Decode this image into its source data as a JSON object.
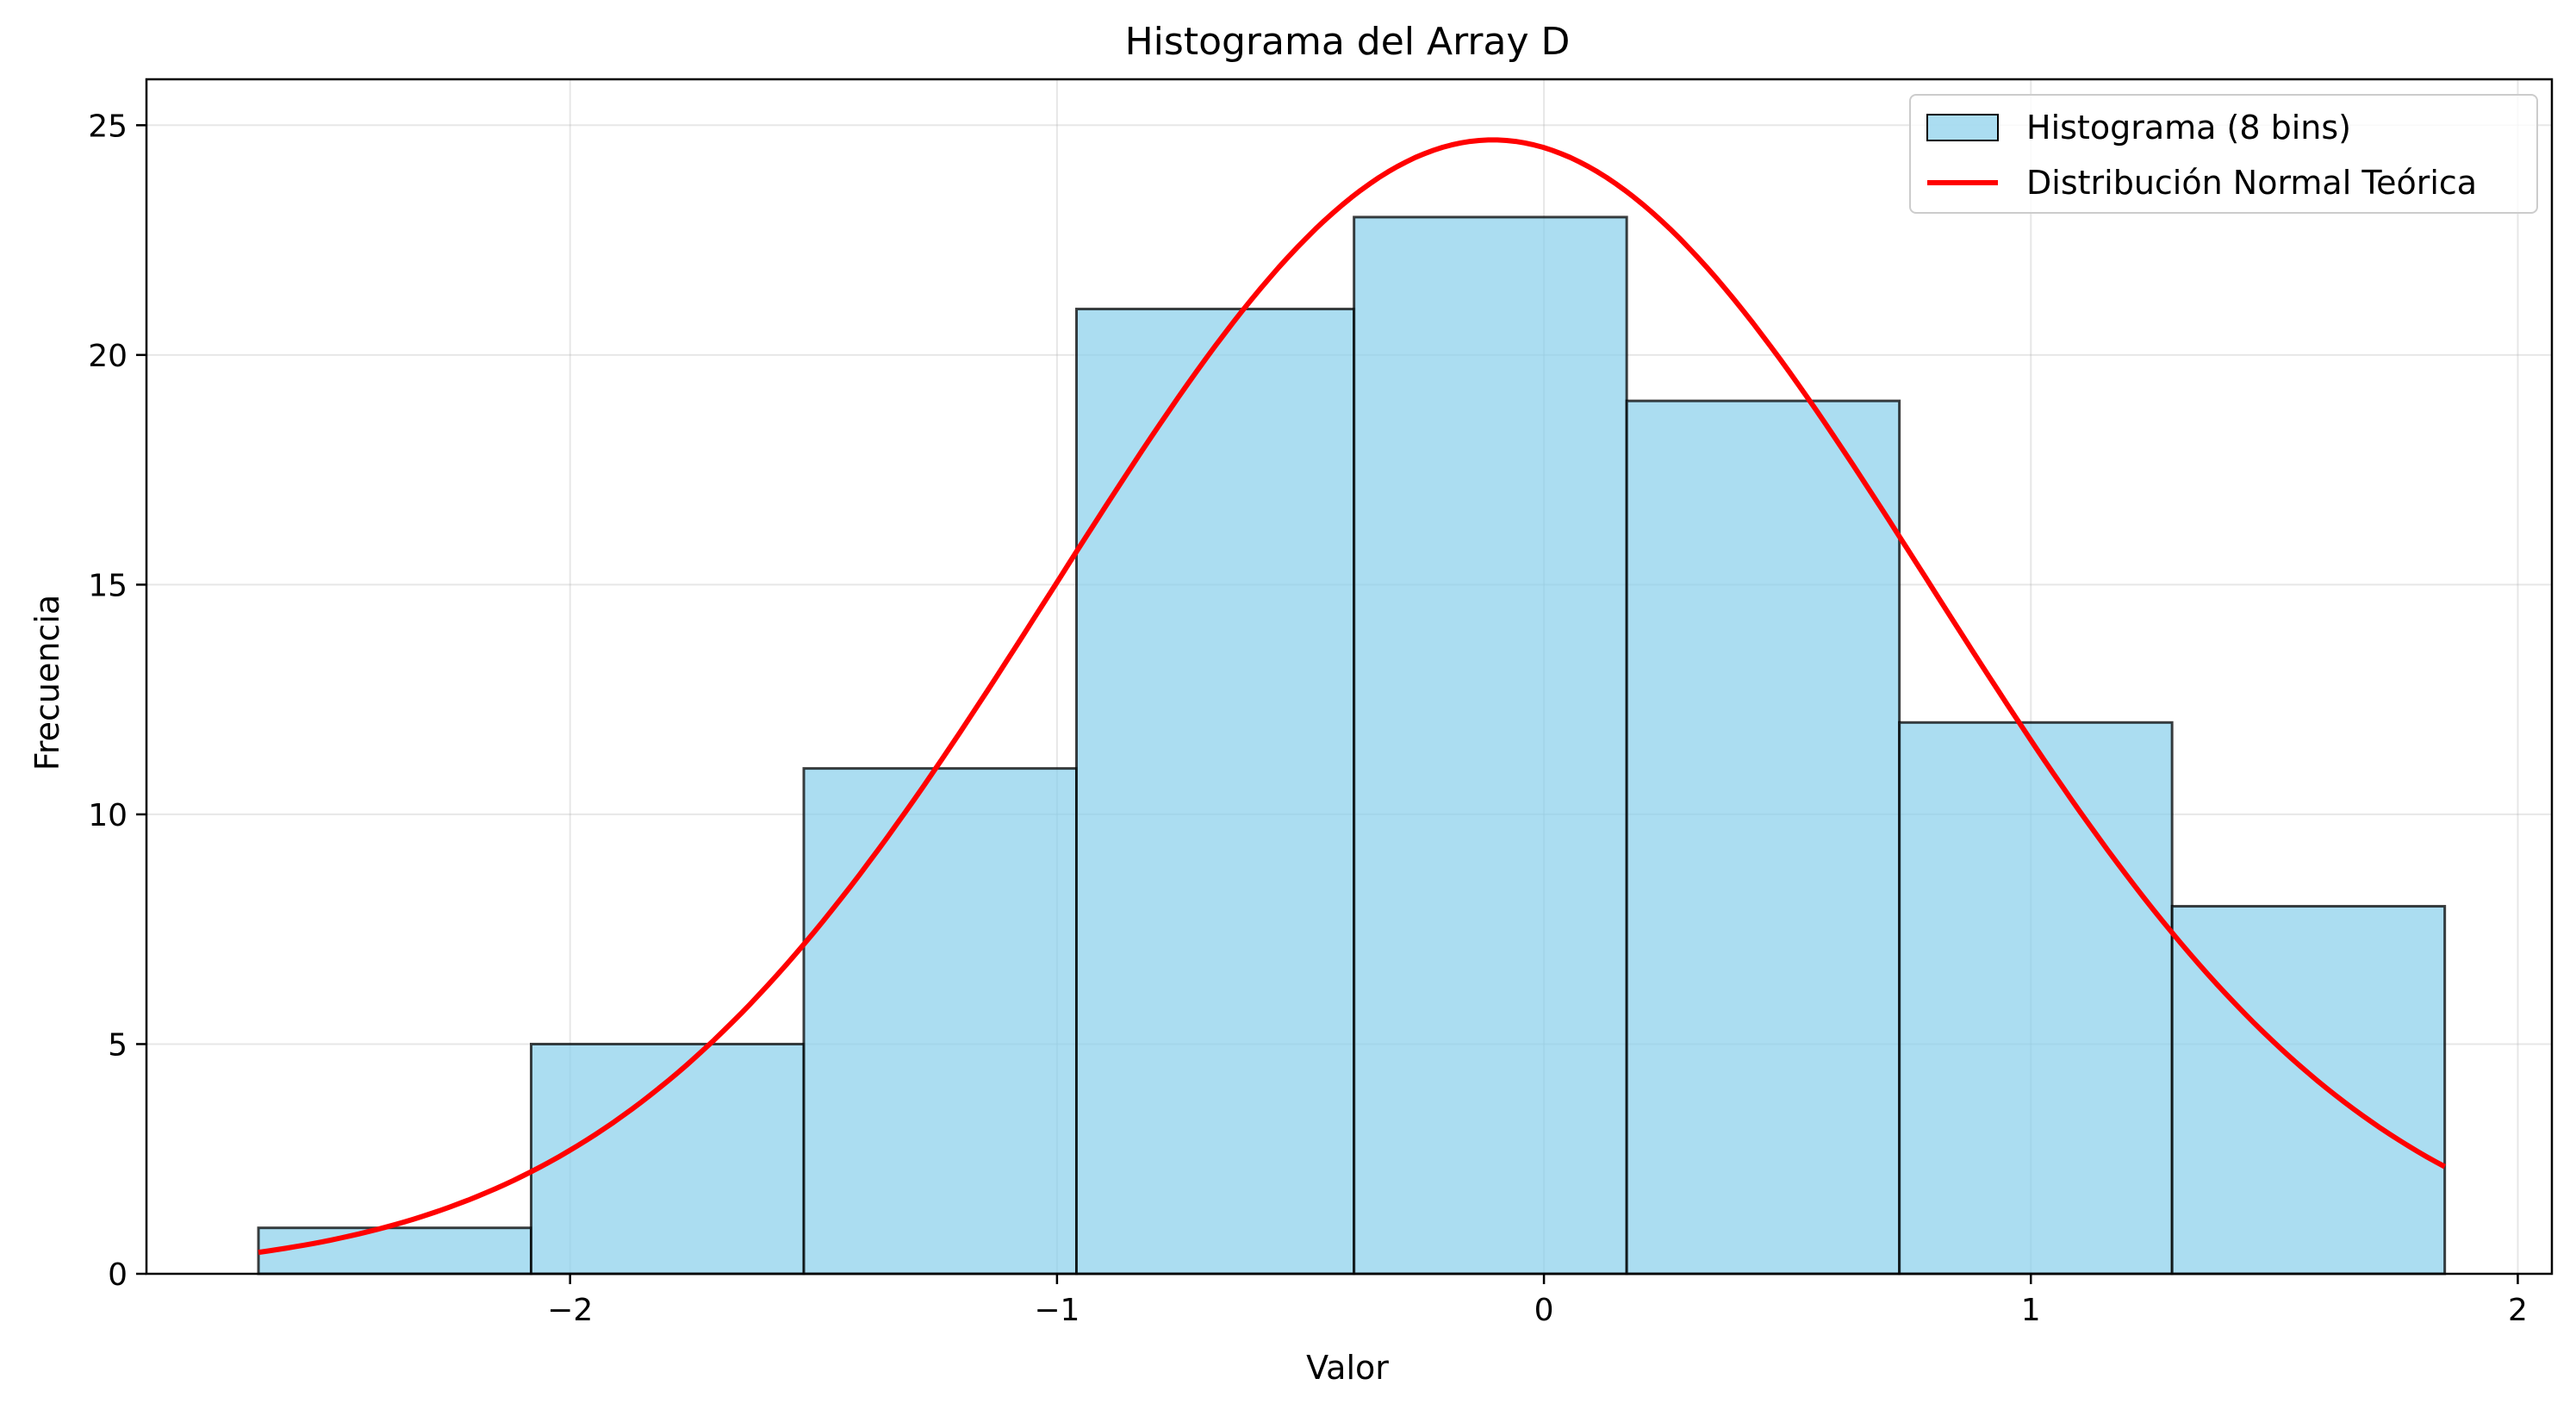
{
  "chart_data": {
    "type": "bar",
    "title": "Histograma del Array D",
    "xlabel": "Valor",
    "ylabel": "Frecuencia",
    "xlim": [
      -2.87,
      2.07
    ],
    "ylim": [
      0,
      26
    ],
    "xticks": [
      -2,
      -1,
      0,
      1,
      2
    ],
    "xtick_labels": [
      "−2",
      "−1",
      "0",
      "1",
      "2"
    ],
    "yticks": [
      0,
      5,
      10,
      15,
      20,
      25
    ],
    "ytick_labels": [
      "0",
      "5",
      "10",
      "15",
      "20",
      "25"
    ],
    "grid": true,
    "legend_position": "top-right",
    "histogram": {
      "name": "Histograma (8 bins)",
      "bin_edges": [
        -2.64,
        -2.08,
        -1.52,
        -0.96,
        -0.39,
        0.17,
        0.73,
        1.29,
        1.85
      ],
      "counts": [
        1,
        5,
        11,
        21,
        23,
        19,
        12,
        8
      ],
      "fill_color": "#87ceeb",
      "fill_opacity": 0.7,
      "edge_color": "#000000"
    },
    "normal_curve": {
      "name": "Distribución Normal Teórica",
      "color": "#ff0000",
      "mean": -0.105,
      "std": 0.9,
      "x_range": [
        -2.64,
        1.85
      ],
      "peak": 24.68
    }
  }
}
